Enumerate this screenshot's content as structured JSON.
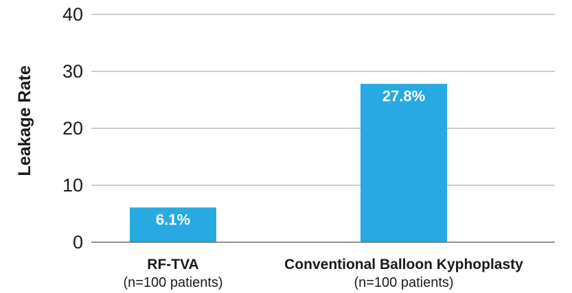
{
  "chart_data": {
    "type": "bar",
    "title": "",
    "xlabel": "",
    "ylabel": "Leakage Rate",
    "ylim": [
      0,
      40
    ],
    "yticks": [
      "0",
      "10",
      "20",
      "30",
      "40"
    ],
    "grid": true,
    "categories": [
      "RF-TVA",
      "Conventional Balloon Kyphoplasty"
    ],
    "category_subtitles": [
      "(n=100 patients)",
      "(n=100 patients)"
    ],
    "values": [
      6.1,
      27.8
    ],
    "data_labels": [
      "6.1%",
      "27.8%"
    ],
    "colors": {
      "bar": "#27AAE1"
    }
  }
}
